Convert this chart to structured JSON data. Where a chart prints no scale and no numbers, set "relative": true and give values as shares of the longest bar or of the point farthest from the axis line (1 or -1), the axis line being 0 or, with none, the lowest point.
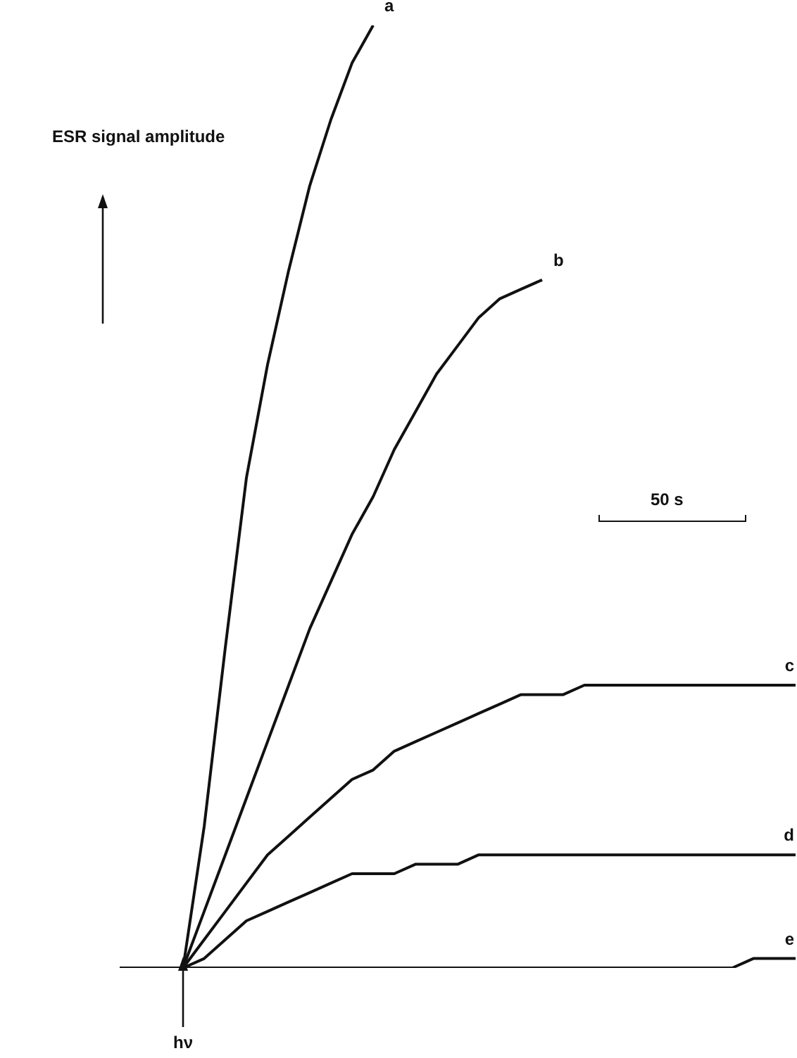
{
  "chart_data": {
    "type": "line",
    "relative": true,
    "ylabel": "ESR signal amplitude",
    "marker": "none",
    "legend": false,
    "tick_labels": false,
    "categories": [
      null,
      null,
      null,
      null,
      null,
      null,
      null,
      null,
      null,
      null,
      null,
      null,
      null,
      null,
      null,
      null,
      null,
      null,
      null,
      null,
      null,
      null,
      null,
      null,
      null,
      null,
      null,
      null,
      null,
      null,
      null,
      null,
      null
    ],
    "series": [
      {
        "name": "a",
        "color": "#111111",
        "values": [
          0,
          0,
          0,
          0,
          0.15,
          0.34,
          0.52,
          0.64,
          0.74,
          0.83,
          0.9,
          0.96,
          1,
          null,
          null,
          null,
          null,
          null,
          null,
          null,
          null,
          null,
          null,
          null,
          null,
          null,
          null,
          null,
          null,
          null,
          null,
          null,
          null
        ]
      },
      {
        "name": "b",
        "color": "#111111",
        "values": [
          0,
          0,
          0,
          0,
          0.06,
          0.12,
          0.18,
          0.24,
          0.3,
          0.36,
          0.41,
          0.46,
          0.5,
          0.55,
          0.59,
          0.63,
          0.66,
          0.69,
          0.71,
          0.72,
          0.73,
          null,
          null,
          null,
          null,
          null,
          null,
          null,
          null,
          null,
          null,
          null,
          null
        ]
      },
      {
        "name": "c",
        "color": "#111111",
        "values": [
          0,
          0,
          0,
          0,
          0.03,
          0.06,
          0.09,
          0.12,
          0.14,
          0.16,
          0.18,
          0.2,
          0.21,
          0.23,
          0.24,
          0.25,
          0.26,
          0.27,
          0.28,
          0.29,
          0.29,
          0.29,
          0.3,
          0.3,
          0.3,
          0.3,
          0.3,
          0.3,
          0.3,
          0.3,
          0.3,
          0.3,
          0.3
        ]
      },
      {
        "name": "d",
        "color": "#111111",
        "values": [
          0,
          0,
          0,
          0,
          0.01,
          0.03,
          0.05,
          0.06,
          0.07,
          0.08,
          0.09,
          0.1,
          0.1,
          0.1,
          0.11,
          0.11,
          0.11,
          0.12,
          0.12,
          0.12,
          0.12,
          0.12,
          0.12,
          0.12,
          0.12,
          0.12,
          0.12,
          0.12,
          0.12,
          0.12,
          0.12,
          0.12,
          0.12
        ]
      },
      {
        "name": "e",
        "color": "#111111",
        "values": [
          0,
          0,
          0,
          0,
          0,
          0,
          0,
          0,
          0,
          0,
          0,
          0,
          0,
          0,
          0,
          0,
          0,
          0,
          0,
          0,
          0,
          0,
          0,
          0,
          0,
          0,
          0,
          0,
          0,
          0,
          0.01,
          0.01,
          0.01
        ]
      }
    ],
    "annotations": [
      "hν",
      "50 s"
    ]
  }
}
